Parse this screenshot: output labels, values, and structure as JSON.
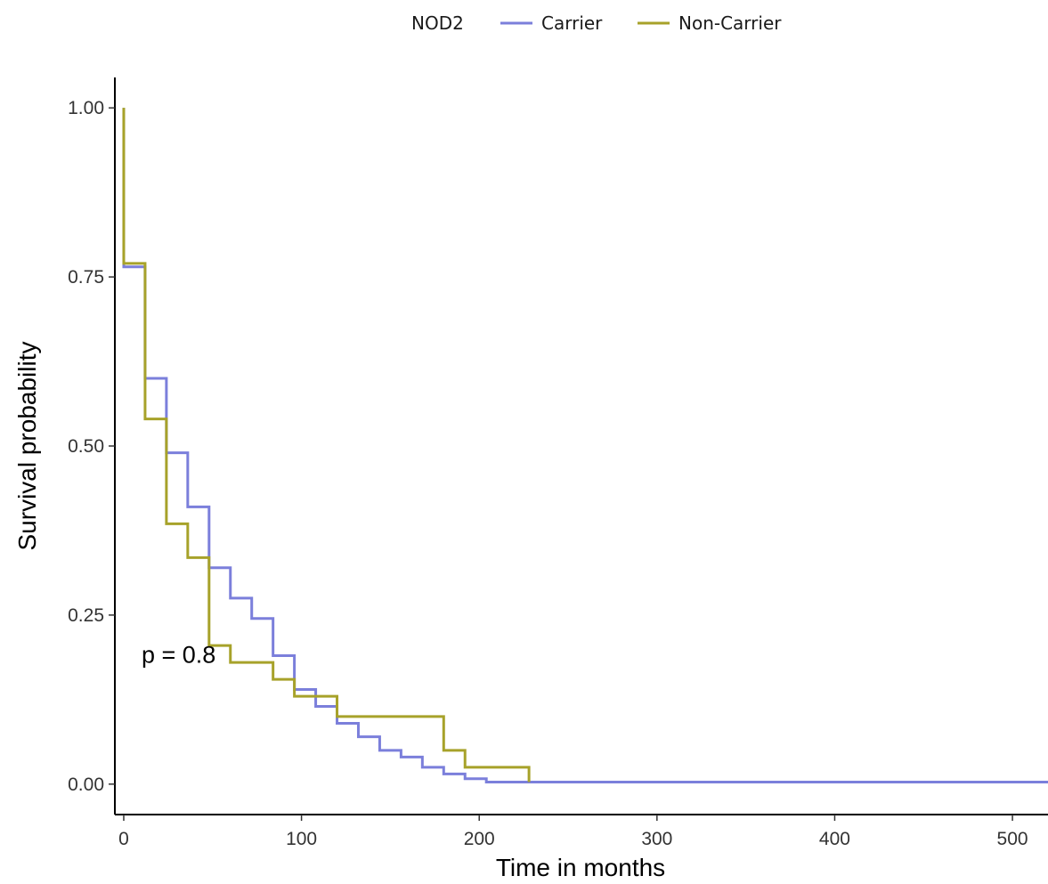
{
  "chart_data": {
    "type": "line",
    "step": true,
    "legend": {
      "title": "NOD2",
      "placement": "top-center",
      "entries": [
        "Carrier",
        "Non-Carrier"
      ]
    },
    "xlabel": "Time in months",
    "ylabel": "Survival probability",
    "xlim": [
      -5,
      520
    ],
    "ylim": [
      -0.045,
      1.045
    ],
    "xticks": [
      0,
      100,
      200,
      300,
      400,
      500
    ],
    "xtick_labels": [
      "0",
      "100",
      "200",
      "300",
      "400",
      "500"
    ],
    "yticks": [
      0,
      0.25,
      0.5,
      0.75,
      1.0
    ],
    "ytick_labels": [
      "0.00",
      "0.25",
      "0.50",
      "0.75",
      "1.00"
    ],
    "grid": false,
    "annotation": {
      "text": "p = 0.8",
      "x": 10,
      "y": 0.19
    },
    "series": [
      {
        "name": "Carrier",
        "color": "#7b7fdb",
        "x": [
          0,
          0,
          12,
          24,
          36,
          48,
          60,
          72,
          84,
          96,
          108,
          120,
          132,
          144,
          156,
          168,
          180,
          192,
          204,
          520
        ],
        "y": [
          1.0,
          0.765,
          0.6,
          0.49,
          0.41,
          0.32,
          0.275,
          0.245,
          0.19,
          0.14,
          0.115,
          0.09,
          0.07,
          0.05,
          0.04,
          0.025,
          0.015,
          0.008,
          0.003,
          0.003
        ]
      },
      {
        "name": "Non-Carrier",
        "color": "#a7a22a",
        "x": [
          0,
          0,
          12,
          24,
          36,
          48,
          60,
          84,
          96,
          120,
          180,
          192,
          228
        ],
        "y": [
          1.0,
          0.77,
          0.54,
          0.385,
          0.335,
          0.205,
          0.18,
          0.155,
          0.13,
          0.1,
          0.05,
          0.025,
          0.003
        ]
      }
    ]
  }
}
